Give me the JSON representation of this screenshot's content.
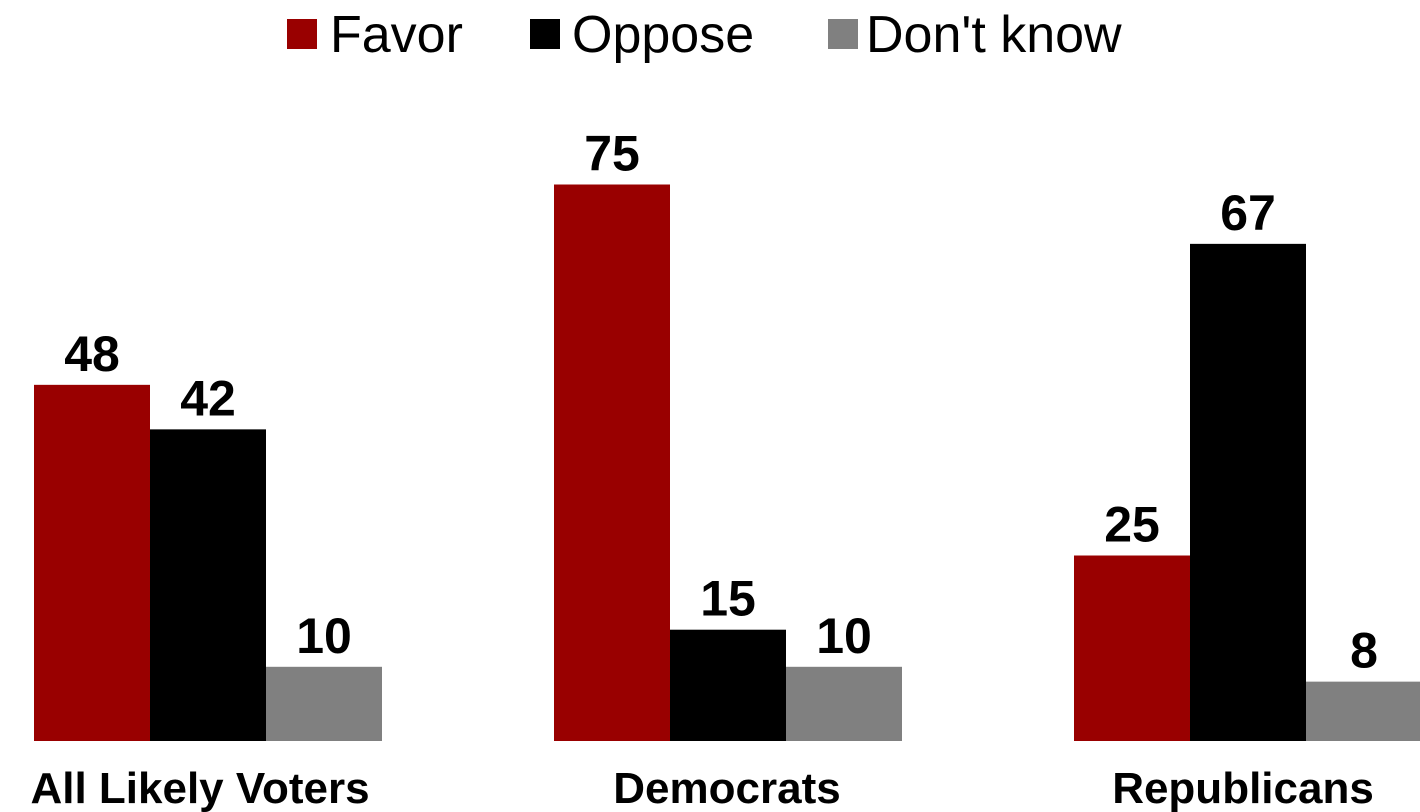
{
  "chart_data": {
    "type": "bar",
    "categories": [
      "All Likely Voters",
      "Democrats",
      "Republicans"
    ],
    "series": [
      {
        "name": "Favor",
        "color": "#990000",
        "values": [
          48,
          75,
          25
        ]
      },
      {
        "name": "Oppose",
        "color": "#000000",
        "values": [
          42,
          15,
          67
        ]
      },
      {
        "name": "Don't know",
        "color": "#808080",
        "values": [
          10,
          10,
          8
        ]
      }
    ],
    "ylim": [
      0,
      75
    ],
    "grid": false,
    "legend_position": "top-center",
    "show_data_labels": true
  }
}
